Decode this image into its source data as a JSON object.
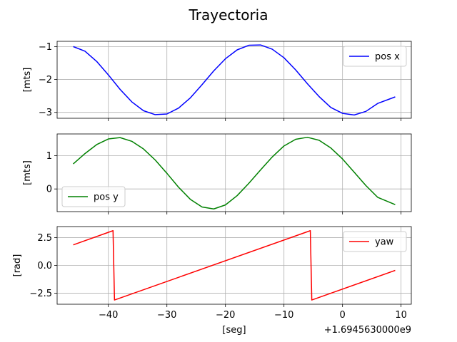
{
  "title": "Trayectoria",
  "chart_data": [
    {
      "type": "line",
      "ylabel": "[mts]",
      "xlim": [
        -48.75,
        11.75
      ],
      "ylim": [
        -3.18,
        -0.84
      ],
      "xticks": [
        -40,
        -30,
        -20,
        -10,
        0,
        10
      ],
      "yticks": [
        -1,
        -2,
        -3
      ],
      "ytick_labels": [
        "−1",
        "−2",
        "−3"
      ],
      "grid": true,
      "legend": "top-right",
      "series": [
        {
          "name": "pos x",
          "color": "#0000ff",
          "x": [
            -46,
            -44,
            -42,
            -40,
            -38,
            -36,
            -34,
            -32,
            -30,
            -28,
            -26,
            -24,
            -22,
            -20,
            -18,
            -16,
            -14,
            -12,
            -10,
            -8,
            -6,
            -4,
            -2,
            0,
            2,
            4,
            6,
            9
          ],
          "y": [
            -1.0,
            -1.14,
            -1.45,
            -1.86,
            -2.3,
            -2.68,
            -2.95,
            -3.07,
            -3.05,
            -2.87,
            -2.56,
            -2.16,
            -1.74,
            -1.37,
            -1.1,
            -0.96,
            -0.95,
            -1.08,
            -1.34,
            -1.71,
            -2.13,
            -2.52,
            -2.85,
            -3.03,
            -3.08,
            -2.97,
            -2.73,
            -2.53
          ]
        }
      ]
    },
    {
      "type": "line",
      "ylabel": "[mts]",
      "xlim": [
        -48.75,
        11.75
      ],
      "ylim": [
        -0.68,
        1.65
      ],
      "xticks": [
        -40,
        -30,
        -20,
        -10,
        0,
        10
      ],
      "yticks": [
        1,
        0
      ],
      "ytick_labels": [
        "1",
        "0"
      ],
      "grid": true,
      "legend": "bottom-left",
      "series": [
        {
          "name": "pos y",
          "color": "#008000",
          "x": [
            -46,
            -44,
            -42,
            -40,
            -38,
            -36,
            -34,
            -32,
            -30,
            -28,
            -26,
            -24,
            -22,
            -20,
            -18,
            -16,
            -14,
            -12,
            -10,
            -8,
            -6,
            -4,
            -2,
            0,
            2,
            4,
            6,
            9
          ],
          "y": [
            0.75,
            1.06,
            1.33,
            1.5,
            1.54,
            1.43,
            1.2,
            0.87,
            0.47,
            0.05,
            -0.31,
            -0.54,
            -0.6,
            -0.48,
            -0.2,
            0.17,
            0.57,
            0.96,
            1.29,
            1.49,
            1.55,
            1.46,
            1.23,
            0.9,
            0.5,
            0.1,
            -0.25,
            -0.47
          ]
        }
      ]
    },
    {
      "type": "line",
      "ylabel": "[rad]",
      "xlabel": "[seg]",
      "offset_text": "+1.6945630000e9",
      "xlim": [
        -48.75,
        11.75
      ],
      "ylim": [
        -3.5,
        3.5
      ],
      "xticks": [
        -40,
        -30,
        -20,
        -10,
        0,
        10
      ],
      "xtick_labels": [
        "−40",
        "−30",
        "−20",
        "−10",
        "0",
        "10"
      ],
      "yticks": [
        2.5,
        0.0,
        -2.5
      ],
      "ytick_labels": [
        "2.5",
        "0.0",
        "−2.5"
      ],
      "grid": true,
      "legend": "top-right",
      "series": [
        {
          "name": "yaw",
          "color": "#ff0000",
          "x": [
            -46,
            -39.2,
            -38.95,
            -5.5,
            -5.25,
            9
          ],
          "y": [
            1.85,
            3.13,
            -3.12,
            3.13,
            -3.12,
            -0.45
          ]
        }
      ]
    }
  ]
}
